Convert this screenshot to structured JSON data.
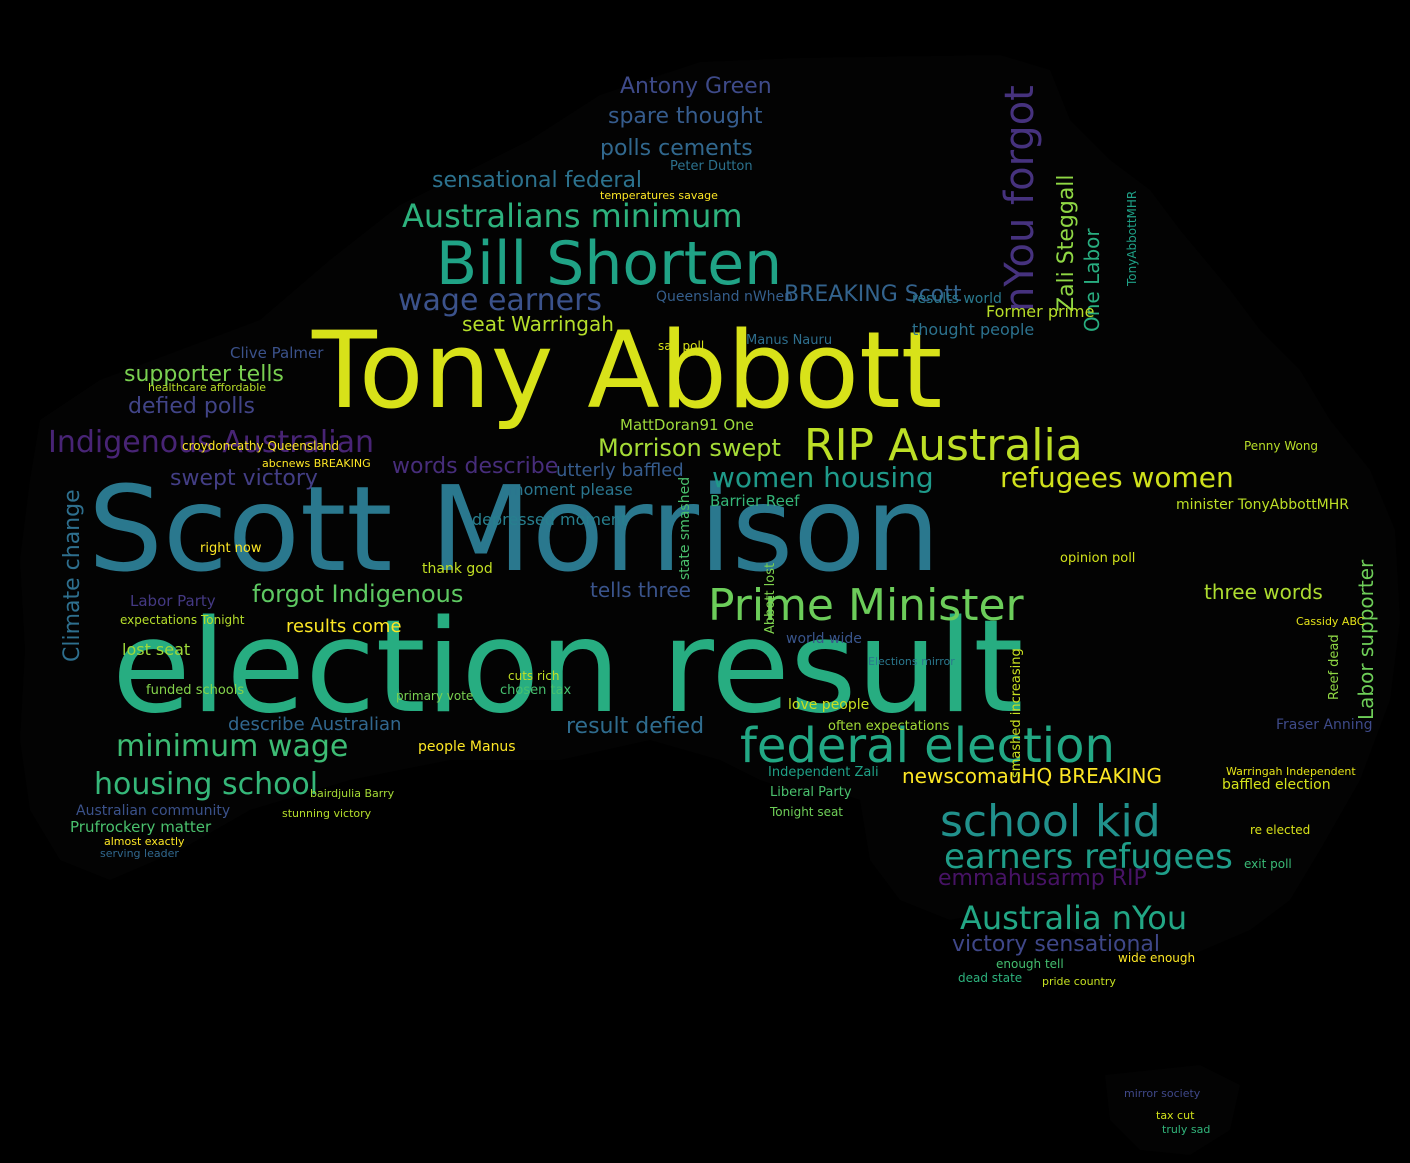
{
  "background": "#000000",
  "words": [
    {
      "text": "election result",
      "color": "#27ad81"
    },
    {
      "text": "Scott Morrison",
      "color": "#2a788e"
    },
    {
      "text": "Tony Abbott",
      "color": "#d8e219"
    },
    {
      "text": "Bill Shorten",
      "color": "#20a386"
    },
    {
      "text": "federal election",
      "color": "#22a884"
    },
    {
      "text": "Prime Minister",
      "color": "#6ccd5a"
    },
    {
      "text": "RIP Australia",
      "color": "#bddf26"
    },
    {
      "text": "school kid",
      "color": "#21918c"
    },
    {
      "text": "Indigenous Australian",
      "color": "#482475"
    },
    {
      "text": "Australians minimum",
      "color": "#2db27d"
    },
    {
      "text": "minimum wage",
      "color": "#3dbc74"
    },
    {
      "text": "earners refugees",
      "color": "#1f9e89"
    },
    {
      "text": "Australia nYou",
      "color": "#22a785"
    },
    {
      "text": "housing school",
      "color": "#35b779"
    },
    {
      "text": "wage earners",
      "color": "#3b528b"
    },
    {
      "text": "women housing",
      "color": "#1f9a8a"
    },
    {
      "text": "refugees women",
      "color": "#d0e11c"
    },
    {
      "text": "nYou forgot",
      "color": "#46327e"
    },
    {
      "text": "forgot Indigenous",
      "color": "#5ec962"
    },
    {
      "text": "Antony Green",
      "color": "#3e4a89"
    },
    {
      "text": "spare thought",
      "color": "#365c8d"
    },
    {
      "text": "polls cements",
      "color": "#31688e"
    },
    {
      "text": "sensational federal",
      "color": "#2c728e"
    },
    {
      "text": "seat Warringah",
      "color": "#b5de2b"
    },
    {
      "text": "BREAKING Scott",
      "color": "#33638d"
    },
    {
      "text": "supporter tells",
      "color": "#7ad151"
    },
    {
      "text": "defied polls",
      "color": "#414487"
    },
    {
      "text": "swept victory",
      "color": "#433e85"
    },
    {
      "text": "words describe",
      "color": "#472d7b"
    },
    {
      "text": "Morrison swept",
      "color": "#a5db36"
    },
    {
      "text": "victory sensational",
      "color": "#3f4788"
    },
    {
      "text": "emmahusarmp RIP",
      "color": "#471365"
    },
    {
      "text": "newscomauHQ BREAKING",
      "color": "#fde725"
    },
    {
      "text": "Zali Steggall",
      "color": "#8fd744"
    },
    {
      "text": "One Labor",
      "color": "#28ae80"
    },
    {
      "text": "Climate change",
      "color": "#2e6f8e"
    },
    {
      "text": "result defied",
      "color": "#2f6c8e"
    },
    {
      "text": "describe Australian",
      "color": "#31678e"
    },
    {
      "text": "three words",
      "color": "#addc30"
    },
    {
      "text": "tells three",
      "color": "#3a548c"
    },
    {
      "text": "results come",
      "color": "#fde725"
    },
    {
      "text": "Labor supporter",
      "color": "#6ece58"
    },
    {
      "text": "Clive Palmer",
      "color": "#3b528b"
    },
    {
      "text": "Queensland nWhen",
      "color": "#355f8d"
    },
    {
      "text": "thought people",
      "color": "#2c728e"
    },
    {
      "text": "Former prime",
      "color": "#b8de29"
    },
    {
      "text": "results world",
      "color": "#29798e"
    },
    {
      "text": "Prufrockery matter",
      "color": "#4ac16d"
    },
    {
      "text": "depressed moment",
      "color": "#277f8e"
    },
    {
      "text": "moment please",
      "color": "#2a768e"
    },
    {
      "text": "utterly baffled",
      "color": "#365c8d"
    },
    {
      "text": "MattDoran91 One",
      "color": "#9dd93b"
    },
    {
      "text": "Barrier Reef",
      "color": "#35b779"
    },
    {
      "text": "minimum",
      "color": "#3dbc74"
    },
    {
      "text": "funded schools",
      "color": "#84d44b"
    },
    {
      "text": "lost seat",
      "color": "#9fda3a"
    },
    {
      "text": "Labor Party",
      "color": "#443983"
    },
    {
      "text": "right now",
      "color": "#fde725"
    },
    {
      "text": "thank god",
      "color": "#c2df23"
    },
    {
      "text": "people Manus",
      "color": "#fde725"
    },
    {
      "text": "minister TonyAbbottMHR",
      "color": "#bddf26"
    },
    {
      "text": "baffled election",
      "color": "#d5e21a"
    },
    {
      "text": "Warringah Independent",
      "color": "#e5e419"
    },
    {
      "text": "Independent Zali",
      "color": "#1fa187"
    },
    {
      "text": "Liberal Party",
      "color": "#4ac16d"
    },
    {
      "text": "Tonight seat",
      "color": "#6ece58"
    },
    {
      "text": "love people",
      "color": "#c8e020"
    },
    {
      "text": "often expectations",
      "color": "#a2da37"
    },
    {
      "text": "world wide",
      "color": "#39558c"
    },
    {
      "text": "Fraser Anning",
      "color": "#3e4a89"
    },
    {
      "text": "Reef dead",
      "color": "#8fd744"
    },
    {
      "text": "re elected",
      "color": "#d8e219"
    },
    {
      "text": "exit poll",
      "color": "#3aba76"
    },
    {
      "text": "wide enough",
      "color": "#fde725"
    },
    {
      "text": "enough tell",
      "color": "#44bf70"
    },
    {
      "text": "dead state",
      "color": "#2db27d"
    },
    {
      "text": "pride country",
      "color": "#c5e021"
    },
    {
      "text": "mirror society",
      "color": "#3f4889"
    },
    {
      "text": "tax cut",
      "color": "#d2e21b"
    },
    {
      "text": "truly sad",
      "color": "#31b57b"
    },
    {
      "text": "Australian community",
      "color": "#3b528b"
    },
    {
      "text": "stunning victory",
      "color": "#b5de2b"
    },
    {
      "text": "almost exactly",
      "color": "#fde725"
    },
    {
      "text": "serving leader",
      "color": "#31688e"
    },
    {
      "text": "croydoncathy Queensland",
      "color": "#fde725"
    },
    {
      "text": "bairdjulia Barry",
      "color": "#a5db36"
    },
    {
      "text": "Abbott lost",
      "color": "#7fd34e"
    },
    {
      "text": "Manus Nauru",
      "color": "#2e6f8e"
    },
    {
      "text": "say poll",
      "color": "#d8e219"
    },
    {
      "text": "chosen tax",
      "color": "#46c06f"
    },
    {
      "text": "cuts rich",
      "color": "#c2df23"
    },
    {
      "text": "primary vote",
      "color": "#7ad151"
    },
    {
      "text": "state smashed",
      "color": "#4ac16d"
    },
    {
      "text": "Penny Wong",
      "color": "#b8de29"
    },
    {
      "text": "Cassidy ABC",
      "color": "#e5e419"
    },
    {
      "text": "smashed increasing",
      "color": "#c8e020"
    },
    {
      "text": "Peter Dutton",
      "color": "#2c728e"
    },
    {
      "text": "temperatures savage",
      "color": "#fde725"
    },
    {
      "text": "healthcare affordable",
      "color": "#b8de29"
    },
    {
      "text": "abcnews BREAKING",
      "color": "#fde725"
    },
    {
      "text": "expectations Tonight",
      "color": "#b5de2b"
    },
    {
      "text": "TonyAbbottMHR",
      "color": "#1fa187"
    },
    {
      "text": "opinion poll",
      "color": "#d2e21b"
    },
    {
      "text": "Elections mirror",
      "color": "#2a788e"
    }
  ]
}
